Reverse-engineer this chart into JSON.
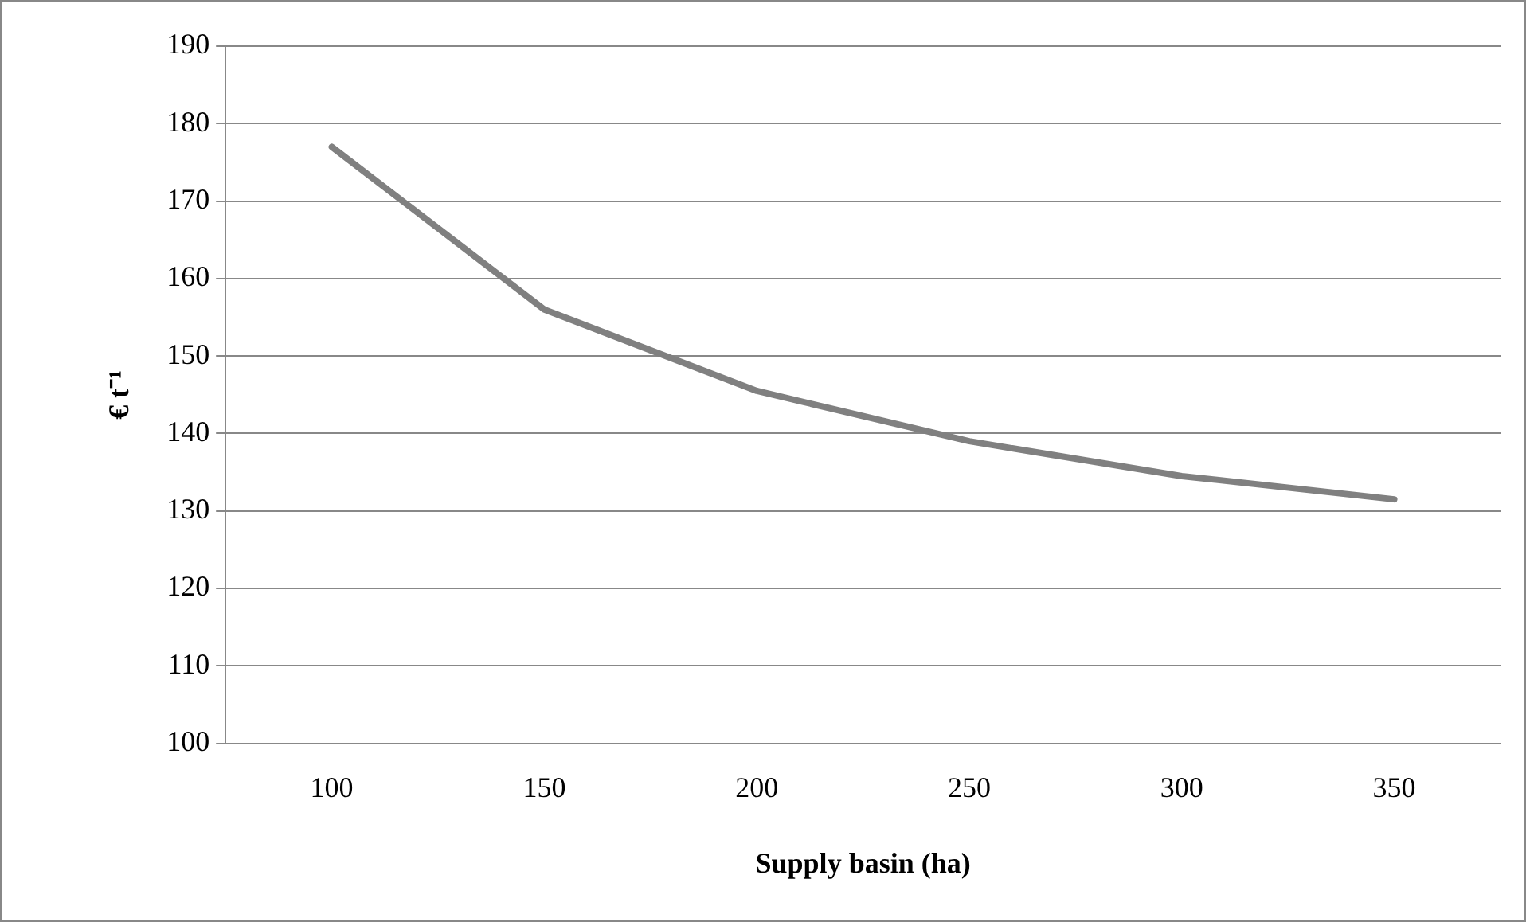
{
  "chart_data": {
    "type": "line",
    "xlabel": "Supply basin (ha)",
    "ylabel": "€ t⁻¹",
    "categories": [
      "100",
      "150",
      "200",
      "250",
      "300",
      "350"
    ],
    "series": [
      {
        "color": "#808080",
        "values": [
          177,
          156,
          145.5,
          139,
          134.5,
          131.5
        ]
      }
    ],
    "ylim": [
      100,
      190
    ],
    "yticks": [
      100,
      110,
      120,
      130,
      140,
      150,
      160,
      170,
      180,
      190
    ],
    "grid": "y",
    "legend": false,
    "marker": "none",
    "line_style": "solid"
  }
}
